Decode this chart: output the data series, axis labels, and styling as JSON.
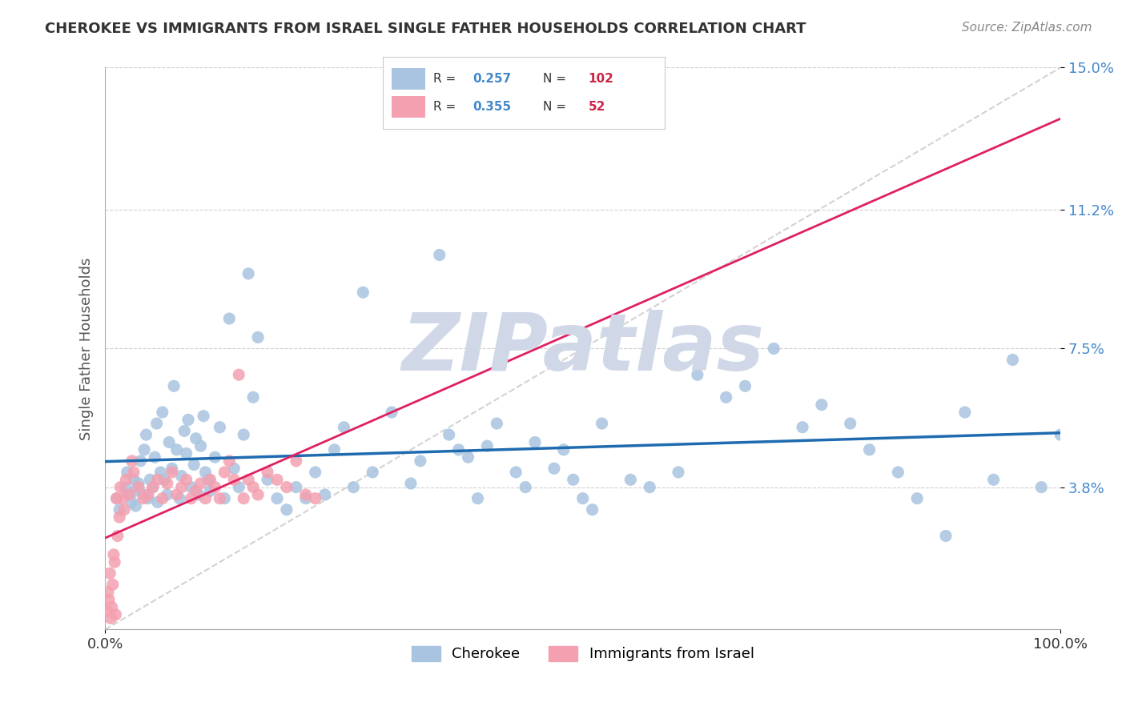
{
  "title": "CHEROKEE VS IMMIGRANTS FROM ISRAEL SINGLE FATHER HOUSEHOLDS CORRELATION CHART",
  "source": "Source: ZipAtlas.com",
  "xlabel": "",
  "ylabel": "Single Father Households",
  "xlim": [
    0.0,
    100.0
  ],
  "ylim": [
    0.0,
    15.0
  ],
  "yticks": [
    3.8,
    7.5,
    11.2,
    15.0
  ],
  "xticks": [
    0.0,
    100.0
  ],
  "xtick_labels": [
    "0.0%",
    "100.0%"
  ],
  "ytick_labels": [
    "3.8%",
    "7.5%",
    "11.2%",
    "15.0%"
  ],
  "cherokee_R": 0.257,
  "cherokee_N": 102,
  "israel_R": 0.355,
  "israel_N": 52,
  "cherokee_color": "#a8c4e0",
  "cherokee_line_color": "#1f6bb0",
  "israel_color": "#f4a0b0",
  "israel_line_color": "#e02060",
  "diagonal_color": "#c0c0c0",
  "watermark": "ZIPatlas",
  "watermark_color": "#d0d8e8",
  "background_color": "#ffffff",
  "grid_color": "#d0d0d0",
  "cherokee_x": [
    1.2,
    1.5,
    2.1,
    2.3,
    2.5,
    2.8,
    3.0,
    3.1,
    3.2,
    3.5,
    3.7,
    4.0,
    4.1,
    4.3,
    4.5,
    4.7,
    5.0,
    5.2,
    5.4,
    5.5,
    5.8,
    6.0,
    6.2,
    6.5,
    6.7,
    7.0,
    7.2,
    7.5,
    7.8,
    8.0,
    8.3,
    8.5,
    8.7,
    9.0,
    9.3,
    9.5,
    9.8,
    10.0,
    10.3,
    10.5,
    10.8,
    11.0,
    11.5,
    12.0,
    12.5,
    13.0,
    13.5,
    14.0,
    14.5,
    15.0,
    15.5,
    16.0,
    17.0,
    18.0,
    19.0,
    20.0,
    21.0,
    22.0,
    23.0,
    24.0,
    25.0,
    26.0,
    27.0,
    28.0,
    30.0,
    32.0,
    33.0,
    35.0,
    36.0,
    37.0,
    38.0,
    39.0,
    40.0,
    41.0,
    43.0,
    44.0,
    45.0,
    47.0,
    48.0,
    50.0,
    52.0,
    55.0,
    57.0,
    60.0,
    62.0,
    65.0,
    67.0,
    70.0,
    73.0,
    75.0,
    78.0,
    80.0,
    83.0,
    85.0,
    88.0,
    90.0,
    93.0,
    95.0,
    98.0,
    100.0,
    49.0,
    51.0
  ],
  "cherokee_y": [
    3.5,
    3.2,
    3.8,
    4.2,
    3.6,
    3.4,
    4.0,
    3.7,
    3.3,
    3.9,
    4.5,
    3.6,
    4.8,
    5.2,
    3.5,
    4.0,
    3.8,
    4.6,
    5.5,
    3.4,
    4.2,
    5.8,
    4.0,
    3.6,
    5.0,
    4.3,
    6.5,
    4.8,
    3.5,
    4.1,
    5.3,
    4.7,
    5.6,
    3.8,
    4.4,
    5.1,
    3.6,
    4.9,
    5.7,
    4.2,
    4.0,
    3.7,
    4.6,
    5.4,
    3.5,
    8.3,
    4.3,
    3.8,
    5.2,
    9.5,
    6.2,
    7.8,
    4.0,
    3.5,
    3.2,
    3.8,
    3.5,
    4.2,
    3.6,
    4.8,
    5.4,
    3.8,
    9.0,
    4.2,
    5.8,
    3.9,
    4.5,
    10.0,
    5.2,
    4.8,
    4.6,
    3.5,
    4.9,
    5.5,
    4.2,
    3.8,
    5.0,
    4.3,
    4.8,
    3.5,
    5.5,
    4.0,
    3.8,
    4.2,
    6.8,
    6.2,
    6.5,
    7.5,
    5.4,
    6.0,
    5.5,
    4.8,
    4.2,
    3.5,
    2.5,
    5.8,
    4.0,
    7.2,
    3.8,
    5.2,
    4.0,
    3.2
  ],
  "israel_x": [
    0.2,
    0.3,
    0.4,
    0.5,
    0.6,
    0.7,
    0.8,
    0.9,
    1.0,
    1.1,
    1.2,
    1.3,
    1.5,
    1.6,
    1.8,
    2.0,
    2.2,
    2.5,
    2.8,
    3.0,
    3.5,
    4.0,
    4.5,
    5.0,
    5.5,
    6.0,
    6.5,
    7.0,
    7.5,
    8.0,
    8.5,
    9.0,
    9.5,
    10.0,
    10.5,
    11.0,
    11.5,
    12.0,
    12.5,
    13.0,
    13.5,
    14.0,
    14.5,
    15.0,
    15.5,
    16.0,
    17.0,
    18.0,
    19.0,
    20.0,
    21.0,
    22.0
  ],
  "israel_y": [
    0.5,
    1.0,
    0.8,
    1.5,
    0.3,
    0.6,
    1.2,
    2.0,
    1.8,
    0.4,
    3.5,
    2.5,
    3.0,
    3.8,
    3.5,
    3.2,
    4.0,
    3.6,
    4.5,
    4.2,
    3.8,
    3.5,
    3.6,
    3.8,
    4.0,
    3.5,
    3.9,
    4.2,
    3.6,
    3.8,
    4.0,
    3.5,
    3.7,
    3.9,
    3.5,
    4.0,
    3.8,
    3.5,
    4.2,
    4.5,
    4.0,
    6.8,
    3.5,
    4.0,
    3.8,
    3.6,
    4.2,
    4.0,
    3.8,
    4.5,
    3.6,
    3.5
  ]
}
